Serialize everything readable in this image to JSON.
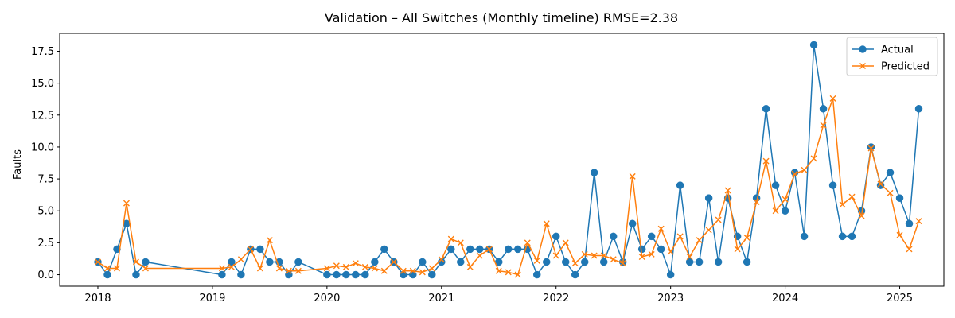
{
  "chart_data": {
    "type": "line",
    "title": "Validation – All Switches (Monthly timeline) RMSE=2.38",
    "xlabel": "",
    "ylabel": "Faults",
    "x_ticks": [
      "2018",
      "2019",
      "2020",
      "2021",
      "2022",
      "2023",
      "2024",
      "2025"
    ],
    "y_ticks": [
      "0.0",
      "2.5",
      "5.0",
      "7.5",
      "10.0",
      "12.5",
      "15.0",
      "17.5"
    ],
    "xlim": [
      "2017-09-01",
      "2025-05-20"
    ],
    "ylim": [
      -0.9,
      18.9
    ],
    "grid": false,
    "legend_position": "top-right",
    "colors": {
      "actual": "#1f77b4",
      "predicted": "#ff7f0e"
    },
    "series": [
      {
        "name": "Actual",
        "marker": "circle",
        "points": [
          [
            "2018-01-01",
            1
          ],
          [
            "2018-02-01",
            0
          ],
          [
            "2018-03-01",
            2
          ],
          [
            "2018-04-01",
            4
          ],
          [
            "2018-05-01",
            0
          ],
          [
            "2018-06-01",
            1
          ],
          [
            "2019-02-01",
            0
          ],
          [
            "2019-03-01",
            1
          ],
          [
            "2019-04-01",
            0
          ],
          [
            "2019-05-01",
            2
          ],
          [
            "2019-06-01",
            2
          ],
          [
            "2019-07-01",
            1
          ],
          [
            "2019-08-01",
            1
          ],
          [
            "2019-09-01",
            0
          ],
          [
            "2019-10-01",
            1
          ],
          [
            "2020-01-01",
            0
          ],
          [
            "2020-02-01",
            0
          ],
          [
            "2020-03-01",
            0
          ],
          [
            "2020-04-01",
            0
          ],
          [
            "2020-05-01",
            0
          ],
          [
            "2020-06-01",
            1
          ],
          [
            "2020-07-01",
            2
          ],
          [
            "2020-08-01",
            1
          ],
          [
            "2020-09-01",
            0
          ],
          [
            "2020-10-01",
            0
          ],
          [
            "2020-11-01",
            1
          ],
          [
            "2020-12-01",
            0
          ],
          [
            "2021-01-01",
            1
          ],
          [
            "2021-02-01",
            2
          ],
          [
            "2021-03-01",
            1
          ],
          [
            "2021-04-01",
            2
          ],
          [
            "2021-05-01",
            2
          ],
          [
            "2021-06-01",
            2
          ],
          [
            "2021-07-01",
            1
          ],
          [
            "2021-08-01",
            2
          ],
          [
            "2021-09-01",
            2
          ],
          [
            "2021-10-01",
            2
          ],
          [
            "2021-11-01",
            0
          ],
          [
            "2021-12-01",
            1
          ],
          [
            "2022-01-01",
            3
          ],
          [
            "2022-02-01",
            1
          ],
          [
            "2022-03-01",
            0
          ],
          [
            "2022-04-01",
            1
          ],
          [
            "2022-05-01",
            8
          ],
          [
            "2022-06-01",
            1
          ],
          [
            "2022-07-01",
            3
          ],
          [
            "2022-08-01",
            1
          ],
          [
            "2022-09-01",
            4
          ],
          [
            "2022-10-01",
            2
          ],
          [
            "2022-11-01",
            3
          ],
          [
            "2022-12-01",
            2
          ],
          [
            "2023-01-01",
            0
          ],
          [
            "2023-02-01",
            7
          ],
          [
            "2023-03-01",
            1
          ],
          [
            "2023-04-01",
            1
          ],
          [
            "2023-05-01",
            6
          ],
          [
            "2023-06-01",
            1
          ],
          [
            "2023-07-01",
            6
          ],
          [
            "2023-08-01",
            3
          ],
          [
            "2023-09-01",
            1
          ],
          [
            "2023-10-01",
            6
          ],
          [
            "2023-11-01",
            13
          ],
          [
            "2023-12-01",
            7
          ],
          [
            "2024-01-01",
            5
          ],
          [
            "2024-02-01",
            8
          ],
          [
            "2024-03-01",
            3
          ],
          [
            "2024-04-01",
            18
          ],
          [
            "2024-05-01",
            13
          ],
          [
            "2024-06-01",
            7
          ],
          [
            "2024-07-01",
            3
          ],
          [
            "2024-08-01",
            3
          ],
          [
            "2024-09-01",
            5
          ],
          [
            "2024-10-01",
            10
          ],
          [
            "2024-11-01",
            7
          ],
          [
            "2024-12-01",
            8
          ],
          [
            "2025-01-01",
            6
          ],
          [
            "2025-02-01",
            4
          ],
          [
            "2025-03-01",
            13
          ]
        ]
      },
      {
        "name": "Predicted",
        "marker": "x",
        "points": [
          [
            "2018-01-01",
            1.0
          ],
          [
            "2018-02-01",
            0.5
          ],
          [
            "2018-03-01",
            0.5
          ],
          [
            "2018-04-01",
            5.6
          ],
          [
            "2018-05-01",
            1.0
          ],
          [
            "2018-06-01",
            0.5
          ],
          [
            "2019-02-01",
            0.5
          ],
          [
            "2019-03-01",
            0.6
          ],
          [
            "2019-04-01",
            1.2
          ],
          [
            "2019-05-01",
            2.0
          ],
          [
            "2019-06-01",
            0.5
          ],
          [
            "2019-07-01",
            2.7
          ],
          [
            "2019-08-01",
            0.5
          ],
          [
            "2019-09-01",
            0.3
          ],
          [
            "2019-10-01",
            0.3
          ],
          [
            "2020-01-01",
            0.5
          ],
          [
            "2020-02-01",
            0.7
          ],
          [
            "2020-03-01",
            0.6
          ],
          [
            "2020-04-01",
            0.9
          ],
          [
            "2020-05-01",
            0.6
          ],
          [
            "2020-06-01",
            0.5
          ],
          [
            "2020-07-01",
            0.3
          ],
          [
            "2020-08-01",
            1.0
          ],
          [
            "2020-09-01",
            0.3
          ],
          [
            "2020-10-01",
            0.3
          ],
          [
            "2020-11-01",
            0.2
          ],
          [
            "2020-12-01",
            0.5
          ],
          [
            "2021-01-01",
            1.2
          ],
          [
            "2021-02-01",
            2.8
          ],
          [
            "2021-03-01",
            2.5
          ],
          [
            "2021-04-01",
            0.6
          ],
          [
            "2021-05-01",
            1.5
          ],
          [
            "2021-06-01",
            2.0
          ],
          [
            "2021-07-01",
            0.3
          ],
          [
            "2021-08-01",
            0.2
          ],
          [
            "2021-09-01",
            0.0
          ],
          [
            "2021-10-01",
            2.5
          ],
          [
            "2021-11-01",
            1.1
          ],
          [
            "2021-12-01",
            4.0
          ],
          [
            "2022-01-01",
            1.5
          ],
          [
            "2022-02-01",
            2.5
          ],
          [
            "2022-03-01",
            0.9
          ],
          [
            "2022-04-01",
            1.6
          ],
          [
            "2022-05-01",
            1.5
          ],
          [
            "2022-06-01",
            1.5
          ],
          [
            "2022-07-01",
            1.2
          ],
          [
            "2022-08-01",
            0.9
          ],
          [
            "2022-09-01",
            7.7
          ],
          [
            "2022-10-01",
            1.4
          ],
          [
            "2022-11-01",
            1.6
          ],
          [
            "2022-12-01",
            3.6
          ],
          [
            "2023-01-01",
            1.8
          ],
          [
            "2023-02-01",
            3.0
          ],
          [
            "2023-03-01",
            1.4
          ],
          [
            "2023-04-01",
            2.7
          ],
          [
            "2023-05-01",
            3.5
          ],
          [
            "2023-06-01",
            4.3
          ],
          [
            "2023-07-01",
            6.6
          ],
          [
            "2023-08-01",
            2.0
          ],
          [
            "2023-09-01",
            2.9
          ],
          [
            "2023-10-01",
            5.7
          ],
          [
            "2023-11-01",
            8.9
          ],
          [
            "2023-12-01",
            5.0
          ],
          [
            "2024-01-01",
            5.9
          ],
          [
            "2024-02-01",
            7.9
          ],
          [
            "2024-03-01",
            8.2
          ],
          [
            "2024-04-01",
            9.1
          ],
          [
            "2024-05-01",
            11.7
          ],
          [
            "2024-06-01",
            13.8
          ],
          [
            "2024-07-01",
            5.5
          ],
          [
            "2024-08-01",
            6.1
          ],
          [
            "2024-09-01",
            4.6
          ],
          [
            "2024-10-01",
            9.9
          ],
          [
            "2024-11-01",
            7.1
          ],
          [
            "2024-12-01",
            6.4
          ],
          [
            "2025-01-01",
            3.1
          ],
          [
            "2025-02-01",
            2.0
          ],
          [
            "2025-03-01",
            4.2
          ]
        ]
      }
    ]
  }
}
